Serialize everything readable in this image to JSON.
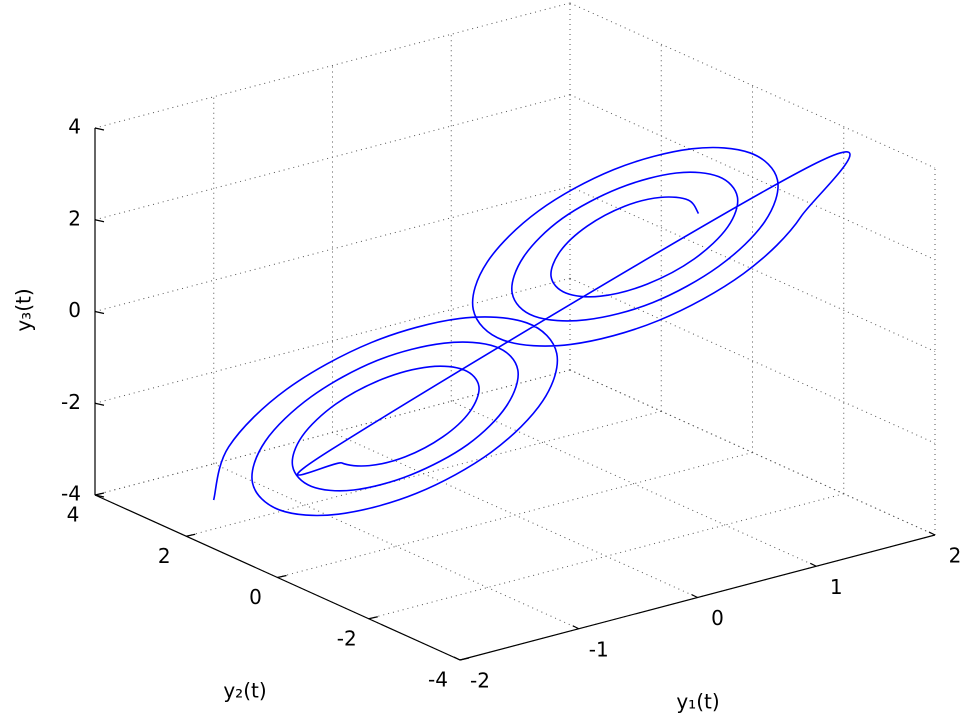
{
  "chart_data": {
    "type": "line3d",
    "xlabel": "y₁(t)",
    "ylabel": "y₂(t)",
    "zlabel": "y₃(t)",
    "xlim": [
      -2,
      2
    ],
    "xticks": [
      -2,
      -1,
      0,
      1,
      2
    ],
    "ylim": [
      -4,
      4
    ],
    "yticks": [
      -4,
      -2,
      0,
      2,
      4
    ],
    "zlim": [
      -4,
      4
    ],
    "zticks": [
      -4,
      -2,
      0,
      2,
      4
    ],
    "grid": true,
    "series": [
      {
        "color": "#0000ff",
        "x": [
          1.48,
          1.46,
          1.35,
          1.2,
          1.03,
          0.9,
          0.83,
          0.87,
          1,
          1.2,
          1.41,
          1.58,
          1.65,
          1.6,
          1.44,
          1.2,
          0.94,
          0.75,
          0.66,
          0.72,
          0.92,
          1.2,
          1.5,
          1.73,
          1.83,
          1.75,
          1.53,
          1.2,
          0.86,
          0.6,
          0.49,
          0.57,
          0.83,
          1.2,
          1.59,
          1.88,
          2,
          -1.48,
          -1.46,
          -1.35,
          -1.2,
          -1.03,
          -0.9,
          -0.83,
          -0.87,
          -1,
          -1.2,
          -1.41,
          -1.58,
          -1.65,
          -1.6,
          -1.44,
          -1.2,
          -0.94,
          -0.75,
          -0.66,
          -0.72,
          -0.92,
          -1.2,
          -1.5,
          -1.73,
          -1.83,
          -1.75,
          -1.53,
          -1.2,
          -0.86,
          -0.6,
          -0.49,
          -0.57,
          -0.83,
          -1.2,
          -1.59,
          -1.88,
          -2
        ],
        "y": [
          -0.17,
          0,
          0.32,
          0.72,
          1.1,
          1.35,
          1.37,
          1.15,
          0.73,
          0.22,
          -0.26,
          -0.55,
          -0.58,
          -0.3,
          0.21,
          0.84,
          1.41,
          1.76,
          1.78,
          1.45,
          0.84,
          0.1,
          -0.56,
          -0.97,
          -0.99,
          -0.6,
          0.11,
          0.96,
          1.72,
          2.17,
          2.19,
          1.74,
          0.94,
          -0.02,
          -0.87,
          -1.38,
          -1.4,
          0.17,
          0,
          -0.32,
          -0.72,
          -1.1,
          -1.35,
          -1.37,
          -1.15,
          -0.73,
          -0.22,
          0.26,
          0.55,
          0.58,
          0.3,
          -0.21,
          -0.84,
          -1.41,
          -1.76,
          -1.78,
          -1.45,
          -0.84,
          -0.1,
          0.56,
          0.97,
          0.99,
          0.6,
          -0.11,
          -0.96,
          -1.72,
          -2.17,
          -2.19,
          -1.74,
          -0.94,
          0.02,
          0.87,
          1.38,
          1.4
        ],
        "z": [
          1.64,
          1.87,
          1.86,
          1.59,
          1.1,
          0.53,
          0.02,
          -0.27,
          -0.24,
          0.12,
          0.74,
          1.45,
          2.07,
          2.42,
          2.38,
          1.93,
          1.19,
          0.33,
          -0.41,
          -0.81,
          -0.75,
          -0.23,
          0.65,
          1.65,
          2.5,
          2.97,
          2.89,
          2.28,
          1.27,
          0.13,
          -0.84,
          -1.36,
          -1.27,
          -0.57,
          0.57,
          1.85,
          2.94,
          -1.64,
          -1.87,
          -1.86,
          -1.59,
          -1.1,
          -0.53,
          -0.02,
          0.27,
          0.24,
          -0.12,
          -0.74,
          -1.45,
          -2.07,
          -2.42,
          -2.38,
          -1.93,
          -1.19,
          -0.33,
          0.41,
          0.81,
          0.75,
          0.23,
          -0.65,
          -1.65,
          -2.5,
          -2.97,
          -2.89,
          -2.28,
          -1.27,
          -0.13,
          0.84,
          1.36,
          1.27,
          0.57,
          -0.57,
          -1.85,
          -2.94
        ]
      }
    ]
  }
}
